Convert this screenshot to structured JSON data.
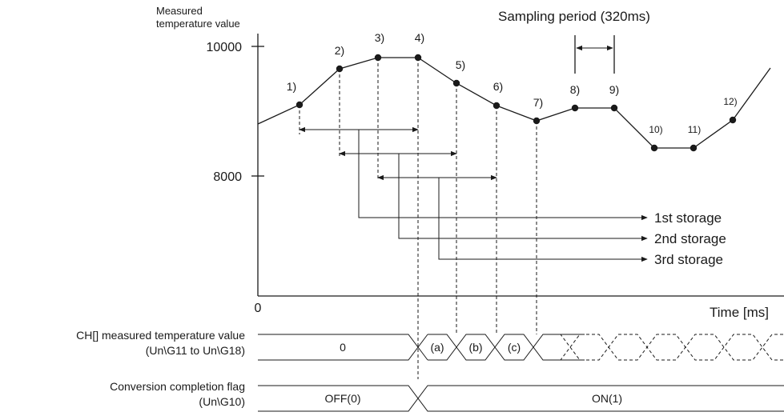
{
  "y_axis": {
    "title_line1": "Measured",
    "title_line2": "temperature value",
    "tick_top": "10000",
    "tick_mid": "8000",
    "origin": "0"
  },
  "x_axis": {
    "title": "Time [ms]"
  },
  "sampling_period": "Sampling period (320ms)",
  "points": [
    "1)",
    "2)",
    "3)",
    "4)",
    "5)",
    "6)",
    "7)",
    "8)",
    "9)",
    "10)",
    "11)",
    "12)"
  ],
  "storage": [
    "1st storage",
    "2nd storage",
    "3rd storage"
  ],
  "signal_value": {
    "label_line1": "CH[] measured temperature value",
    "label_line2": "(Un\\G11 to Un\\G18)",
    "initial": "0",
    "values": [
      "(a)",
      "(b)",
      "(c)"
    ]
  },
  "signal_flag": {
    "label_line1": "Conversion completion flag",
    "label_line2": "(Un\\G10)",
    "off": "OFF(0)",
    "on": "ON(1)"
  }
}
